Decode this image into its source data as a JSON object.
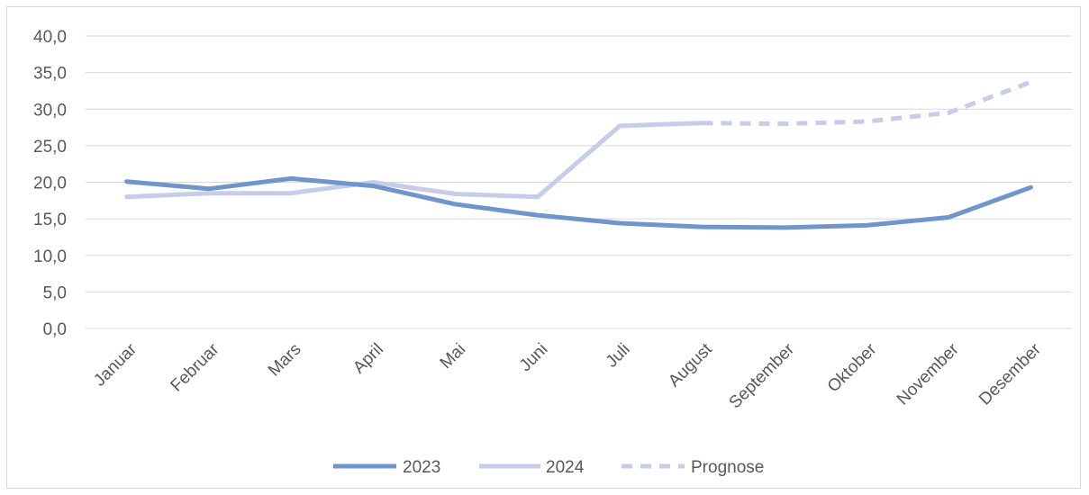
{
  "chart_data": {
    "type": "line",
    "categories": [
      "Januar",
      "Februar",
      "Mars",
      "April",
      "Mai",
      "Juni",
      "Juli",
      "August",
      "September",
      "Oktober",
      "November",
      "Desember"
    ],
    "ylim": [
      0,
      40
    ],
    "yticks": [
      "0,0",
      "5,0",
      "10,0",
      "15,0",
      "20,0",
      "25,0",
      "30,0",
      "35,0",
      "40,0"
    ],
    "grid": true,
    "legend_position": "bottom",
    "series": [
      {
        "name": "2023",
        "values": [
          20.1,
          19.1,
          20.5,
          19.5,
          17.0,
          15.5,
          14.4,
          13.9,
          13.8,
          14.1,
          15.2,
          19.3
        ],
        "color": "#7095cd",
        "style": "solid"
      },
      {
        "name": "2024",
        "values": [
          18.0,
          18.5,
          18.5,
          20.0,
          18.4,
          18.0,
          27.7,
          28.1,
          null,
          null,
          null,
          null
        ],
        "color": "#c5cde8",
        "style": "solid"
      },
      {
        "name": "Prognose",
        "values": [
          null,
          null,
          null,
          null,
          null,
          null,
          null,
          28.1,
          28.0,
          28.3,
          29.5,
          33.7
        ],
        "color": "#c5cde8",
        "style": "dashed"
      }
    ]
  }
}
